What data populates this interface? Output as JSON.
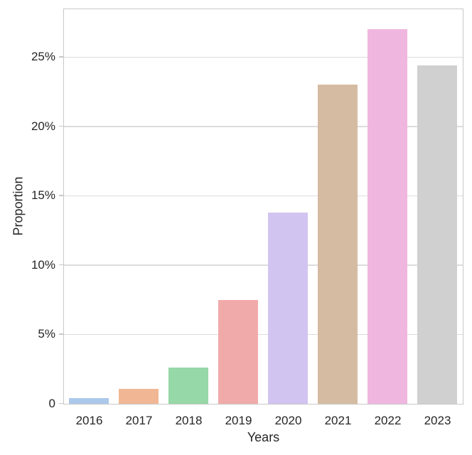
{
  "figure": {
    "background_color": "#ffffff",
    "grid_color": "#dcdcdc",
    "spine_color": "#c8c8c8",
    "text_color": "#262626"
  },
  "chart_data": {
    "type": "bar",
    "title": "",
    "xlabel": "Years",
    "ylabel": "Proportion",
    "categories": [
      "2016",
      "2017",
      "2018",
      "2019",
      "2020",
      "2021",
      "2022",
      "2023"
    ],
    "values": [
      0.4,
      1.1,
      2.6,
      7.5,
      13.8,
      23.0,
      27.0,
      24.4
    ],
    "value_unit": "%",
    "bar_colors": [
      "#abc8eb",
      "#f1b795",
      "#96d8a7",
      "#f1aaaa",
      "#d2c4f0",
      "#d5bba2",
      "#efb7df",
      "#d0d0d0"
    ],
    "ylim": [
      0,
      28.4
    ],
    "yticks": [
      {
        "value": 0,
        "label": "0"
      },
      {
        "value": 5,
        "label": "5%"
      },
      {
        "value": 10,
        "label": "10%"
      },
      {
        "value": 15,
        "label": "15%"
      },
      {
        "value": 20,
        "label": "20%"
      },
      {
        "value": 25,
        "label": "25%"
      }
    ],
    "grid": true,
    "grid_axis": "y",
    "legend": false,
    "bar_width_fraction": 0.8
  }
}
